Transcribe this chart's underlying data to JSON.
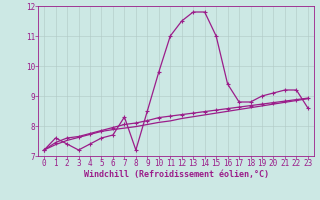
{
  "x": [
    0,
    1,
    2,
    3,
    4,
    5,
    6,
    7,
    8,
    9,
    10,
    11,
    12,
    13,
    14,
    15,
    16,
    17,
    18,
    19,
    20,
    21,
    22,
    23
  ],
  "line1": [
    7.2,
    7.6,
    7.4,
    7.2,
    7.4,
    7.6,
    7.7,
    8.3,
    7.2,
    8.5,
    9.8,
    11.0,
    11.5,
    11.8,
    11.8,
    11.0,
    9.4,
    8.8,
    8.8,
    9.0,
    9.1,
    9.2,
    9.2,
    8.6
  ],
  "line2": [
    7.2,
    7.45,
    7.6,
    7.65,
    7.75,
    7.85,
    7.95,
    8.05,
    8.1,
    8.18,
    8.28,
    8.33,
    8.38,
    8.43,
    8.48,
    8.53,
    8.58,
    8.63,
    8.68,
    8.73,
    8.78,
    8.83,
    8.88,
    8.93
  ],
  "line3": [
    7.2,
    7.38,
    7.52,
    7.62,
    7.72,
    7.82,
    7.88,
    7.93,
    7.98,
    8.05,
    8.12,
    8.17,
    8.25,
    8.31,
    8.37,
    8.43,
    8.49,
    8.55,
    8.61,
    8.67,
    8.73,
    8.79,
    8.85,
    8.91
  ],
  "ylim": [
    7.0,
    12.0
  ],
  "xlim": [
    -0.5,
    23.5
  ],
  "yticks": [
    7,
    8,
    9,
    10,
    11,
    12
  ],
  "xticks": [
    0,
    1,
    2,
    3,
    4,
    5,
    6,
    7,
    8,
    9,
    10,
    11,
    12,
    13,
    14,
    15,
    16,
    17,
    18,
    19,
    20,
    21,
    22,
    23
  ],
  "color": "#9b1d8a",
  "bg_color": "#cce8e4",
  "grid_color": "#b0c8c4",
  "xlabel": "Windchill (Refroidissement éolien,°C)",
  "markersize": 3,
  "linewidth": 0.9
}
